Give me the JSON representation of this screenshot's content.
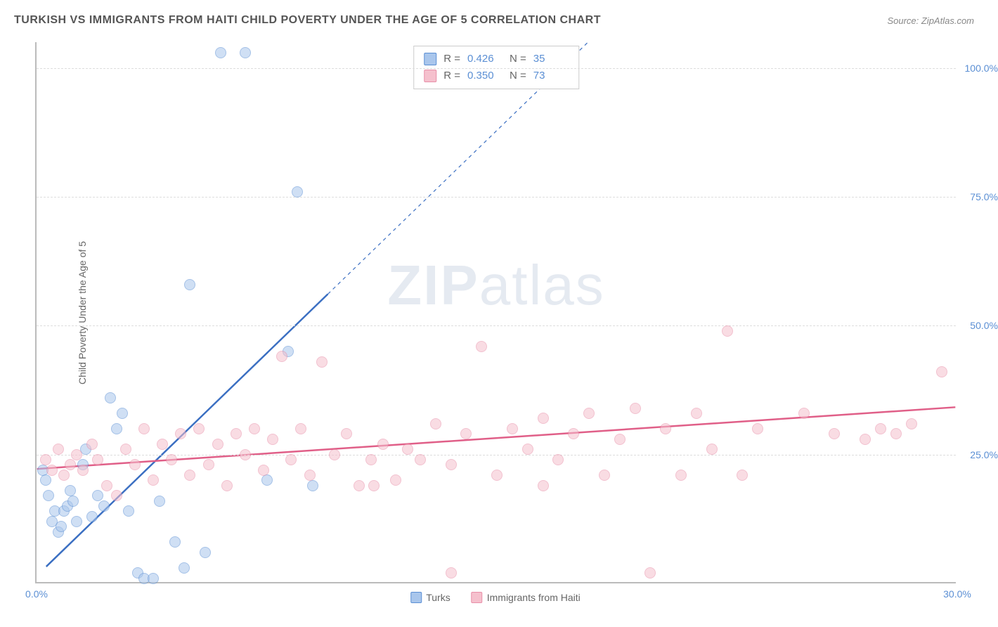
{
  "header": {
    "title": "TURKISH VS IMMIGRANTS FROM HAITI CHILD POVERTY UNDER THE AGE OF 5 CORRELATION CHART",
    "source": "Source: ZipAtlas.com"
  },
  "chart": {
    "type": "scatter",
    "y_axis_title": "Child Poverty Under the Age of 5",
    "xlim": [
      0,
      30
    ],
    "ylim": [
      0,
      105
    ],
    "x_ticks": [
      0,
      30
    ],
    "x_tick_labels": [
      "0.0%",
      "30.0%"
    ],
    "y_ticks": [
      25,
      50,
      75,
      100
    ],
    "y_tick_labels": [
      "25.0%",
      "50.0%",
      "75.0%",
      "100.0%"
    ],
    "background_color": "#ffffff",
    "grid_color": "#dddddd",
    "grid_dash": "4,4",
    "axis_color": "#bbbbbb",
    "tick_label_color": "#5b8fd4",
    "axis_title_color": "#666666",
    "point_radius": 8,
    "point_opacity": 0.55,
    "watermark": {
      "text_bold": "ZIP",
      "text_light": "atlas",
      "color": "rgba(150,170,200,0.25)",
      "fontsize": 80
    },
    "series": [
      {
        "name": "Turks",
        "label": "Turks",
        "fill_color": "#a9c6ec",
        "stroke_color": "#5b8fd4",
        "trend": {
          "color": "#3b6fc2",
          "width": 2.5,
          "x1": 0.3,
          "y1": 3,
          "x2": 9.5,
          "y2": 56,
          "dash_after": true,
          "dash_x2": 18,
          "dash_y2": 105
        },
        "stats": {
          "R": "0.426",
          "N": "35"
        },
        "points": [
          [
            0.2,
            22
          ],
          [
            0.3,
            20
          ],
          [
            0.4,
            17
          ],
          [
            0.5,
            12
          ],
          [
            0.6,
            14
          ],
          [
            0.7,
            10
          ],
          [
            0.8,
            11
          ],
          [
            0.9,
            14
          ],
          [
            1.0,
            15
          ],
          [
            1.1,
            18
          ],
          [
            1.2,
            16
          ],
          [
            1.3,
            12
          ],
          [
            1.5,
            23
          ],
          [
            1.6,
            26
          ],
          [
            1.8,
            13
          ],
          [
            2.0,
            17
          ],
          [
            2.2,
            15
          ],
          [
            2.4,
            36
          ],
          [
            2.6,
            30
          ],
          [
            2.8,
            33
          ],
          [
            3.0,
            14
          ],
          [
            3.3,
            2
          ],
          [
            3.5,
            1
          ],
          [
            3.8,
            1
          ],
          [
            4.0,
            16
          ],
          [
            4.5,
            8
          ],
          [
            5.0,
            58
          ],
          [
            5.5,
            6
          ],
          [
            6.0,
            103
          ],
          [
            6.8,
            103
          ],
          [
            7.5,
            20
          ],
          [
            8.2,
            45
          ],
          [
            8.5,
            76
          ],
          [
            9.0,
            19
          ],
          [
            4.8,
            3
          ]
        ]
      },
      {
        "name": "Immigrants from Haiti",
        "label": "Immigrants from Haiti",
        "fill_color": "#f5c0cd",
        "stroke_color": "#e88fa8",
        "trend": {
          "color": "#e05f88",
          "width": 2.5,
          "x1": 0,
          "y1": 22,
          "x2": 30,
          "y2": 34,
          "dash_after": false
        },
        "stats": {
          "R": "0.350",
          "N": "73"
        },
        "points": [
          [
            0.3,
            24
          ],
          [
            0.5,
            22
          ],
          [
            0.7,
            26
          ],
          [
            0.9,
            21
          ],
          [
            1.1,
            23
          ],
          [
            1.3,
            25
          ],
          [
            1.5,
            22
          ],
          [
            1.8,
            27
          ],
          [
            2.0,
            24
          ],
          [
            2.3,
            19
          ],
          [
            2.6,
            17
          ],
          [
            2.9,
            26
          ],
          [
            3.2,
            23
          ],
          [
            3.5,
            30
          ],
          [
            3.8,
            20
          ],
          [
            4.1,
            27
          ],
          [
            4.4,
            24
          ],
          [
            4.7,
            29
          ],
          [
            5.0,
            21
          ],
          [
            5.3,
            30
          ],
          [
            5.6,
            23
          ],
          [
            5.9,
            27
          ],
          [
            6.2,
            19
          ],
          [
            6.5,
            29
          ],
          [
            6.8,
            25
          ],
          [
            7.1,
            30
          ],
          [
            7.4,
            22
          ],
          [
            7.7,
            28
          ],
          [
            8.0,
            44
          ],
          [
            8.3,
            24
          ],
          [
            8.6,
            30
          ],
          [
            8.9,
            21
          ],
          [
            9.3,
            43
          ],
          [
            9.7,
            25
          ],
          [
            10.1,
            29
          ],
          [
            10.5,
            19
          ],
          [
            10.9,
            24
          ],
          [
            11.3,
            27
          ],
          [
            11.7,
            20
          ],
          [
            12.1,
            26
          ],
          [
            12.5,
            24
          ],
          [
            13.0,
            31
          ],
          [
            13.5,
            23
          ],
          [
            14.0,
            29
          ],
          [
            14.5,
            46
          ],
          [
            15.0,
            21
          ],
          [
            15.5,
            30
          ],
          [
            16.0,
            26
          ],
          [
            16.5,
            32
          ],
          [
            17.0,
            24
          ],
          [
            17.5,
            29
          ],
          [
            18.0,
            33
          ],
          [
            18.5,
            21
          ],
          [
            19.0,
            28
          ],
          [
            19.5,
            34
          ],
          [
            20.0,
            2
          ],
          [
            20.5,
            30
          ],
          [
            21.0,
            21
          ],
          [
            21.5,
            33
          ],
          [
            22.0,
            26
          ],
          [
            22.5,
            49
          ],
          [
            23.0,
            21
          ],
          [
            23.5,
            30
          ],
          [
            25.0,
            33
          ],
          [
            26.0,
            29
          ],
          [
            27.0,
            28
          ],
          [
            27.5,
            30
          ],
          [
            28.0,
            29
          ],
          [
            28.5,
            31
          ],
          [
            29.5,
            41
          ],
          [
            13.5,
            2
          ],
          [
            16.5,
            19
          ],
          [
            11.0,
            19
          ]
        ]
      }
    ],
    "stats_box": {
      "rows": [
        {
          "swatch_series": 0,
          "R_label": "R =",
          "N_label": "N ="
        },
        {
          "swatch_series": 1,
          "R_label": "R =",
          "N_label": "N ="
        }
      ]
    },
    "bottom_legend": [
      {
        "series": 0
      },
      {
        "series": 1
      }
    ]
  }
}
